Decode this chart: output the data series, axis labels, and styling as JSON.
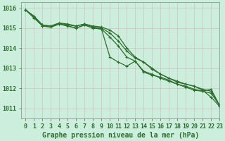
{
  "title": "Graphe pression niveau de la mer (hPa)",
  "bg_color": "#cceedd",
  "grid_color": "#b0cccc",
  "line_color": "#2d6e2d",
  "marker_color": "#2d6e2d",
  "xlim": [
    -0.5,
    23
  ],
  "ylim": [
    1010.5,
    1016.3
  ],
  "yticks": [
    1011,
    1012,
    1013,
    1014,
    1015,
    1016
  ],
  "xticks": [
    0,
    1,
    2,
    3,
    4,
    5,
    6,
    7,
    8,
    9,
    10,
    11,
    12,
    13,
    14,
    15,
    16,
    17,
    18,
    19,
    20,
    21,
    22,
    23
  ],
  "series": [
    [
      1015.9,
      1015.6,
      1015.15,
      1015.1,
      1015.25,
      1015.2,
      1015.1,
      1015.2,
      1015.1,
      1015.05,
      1014.9,
      1014.6,
      1014.0,
      1013.55,
      1013.3,
      1013.0,
      1012.7,
      1012.5,
      1012.3,
      1012.2,
      1012.1,
      1011.9,
      1011.55,
      1011.1
    ],
    [
      1015.9,
      1015.55,
      1015.15,
      1015.1,
      1015.25,
      1015.15,
      1015.1,
      1015.2,
      1015.05,
      1015.0,
      1014.75,
      1014.35,
      1013.85,
      1013.5,
      1013.3,
      1012.95,
      1012.7,
      1012.5,
      1012.35,
      1012.2,
      1012.1,
      1011.95,
      1011.85,
      1011.15
    ],
    [
      1015.9,
      1015.55,
      1015.1,
      1015.05,
      1015.2,
      1015.1,
      1015.0,
      1015.15,
      1015.0,
      1014.95,
      1013.55,
      1013.3,
      1013.1,
      1013.35,
      1012.8,
      1012.65,
      1012.55,
      1012.4,
      1012.2,
      1012.1,
      1011.95,
      1011.85,
      1011.95,
      1011.15
    ],
    [
      1015.9,
      1015.5,
      1015.1,
      1015.05,
      1015.2,
      1015.1,
      1015.0,
      1015.15,
      1015.0,
      1014.95,
      1014.55,
      1014.1,
      1013.55,
      1013.35,
      1012.85,
      1012.7,
      1012.5,
      1012.35,
      1012.2,
      1012.05,
      1011.9,
      1011.85,
      1011.75,
      1011.15
    ]
  ],
  "xlabel_fontsize": 7,
  "tick_fontsize": 6,
  "ytick_fontsize": 6
}
